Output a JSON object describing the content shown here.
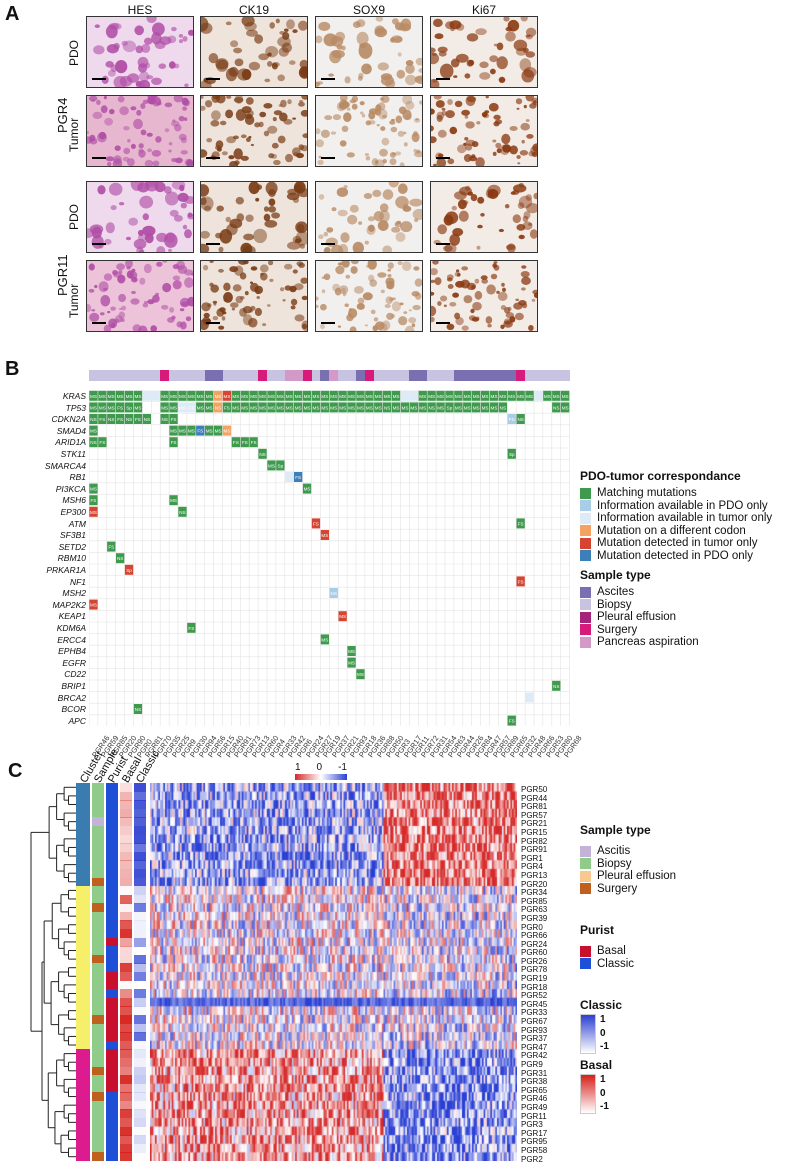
{
  "panels": {
    "a": "A",
    "b": "B",
    "c": "C"
  },
  "panel_a": {
    "columns": [
      "HES",
      "CK19",
      "SOX9",
      "Ki67"
    ],
    "groups": [
      {
        "name": "PGR4",
        "rows": [
          "PDO",
          "Tumor"
        ]
      },
      {
        "name": "PGR11",
        "rows": [
          "PDO",
          "Tumor"
        ]
      }
    ]
  },
  "panel_b": {
    "genes": [
      "KRAS",
      "TP53",
      "CDKN2A",
      "SMAD4",
      "ARID1A",
      "STK11",
      "SMARCA4",
      "RB1",
      "PI3KCA",
      "MSH6",
      "EP300",
      "ATM",
      "SF3B1",
      "SETD2",
      "RBM10",
      "PRKAR1A",
      "NF1",
      "MSH2",
      "MAP2K2",
      "KEAP1",
      "KDM6A",
      "ERCC4",
      "EPHB4",
      "EGFR",
      "CD22",
      "BRIP1",
      "BRCA2",
      "BCOR",
      "APC"
    ],
    "samples": [
      "PGR46",
      "PGR59",
      "PGR85",
      "PGR20",
      "PGR90",
      "PGR0",
      "PGR81",
      "PGR70",
      "PGR35",
      "PGR25",
      "PGR9",
      "PGR30",
      "PGR94",
      "PGR56",
      "PGR15",
      "PGR40",
      "PGR91",
      "PGR73",
      "PGR13",
      "PGR60",
      "PGR4",
      "PGR33",
      "PGR42",
      "PGR6",
      "PGR24",
      "PGR27",
      "PGR19",
      "PGR37",
      "PGR21",
      "PGR93",
      "PGR18",
      "PGR36",
      "PGR88",
      "PGR50",
      "PGR3",
      "PGR17",
      "PGR11",
      "PGR72",
      "PGR31",
      "PGR54",
      "PGR63",
      "PGR44",
      "PGR26",
      "PGR84",
      "PGR47",
      "PGR57",
      "PGR89",
      "PGR65",
      "PGR32",
      "PGR48",
      "PGR66",
      "PGR53",
      "PGR80",
      "PGR68"
    ],
    "legend_correspondence_title": "PDO-tumor correspondance",
    "legend_correspondence": [
      {
        "label": "Matching mutations",
        "color": "#3f9a4e"
      },
      {
        "label": "Information available in PDO only",
        "color": "#a9cde6"
      },
      {
        "label": "Information available in tumor only",
        "color": "#deebf7"
      },
      {
        "label": "Mutation on a different codon",
        "color": "#f4a261"
      },
      {
        "label": "Mutation detected in tumor only",
        "color": "#d64432"
      },
      {
        "label": "Mutation detected in PDO only",
        "color": "#3d7fb8"
      }
    ],
    "legend_sample_title": "Sample type",
    "legend_sample": [
      {
        "label": "Ascites",
        "color": "#7a6fb0"
      },
      {
        "label": "Biopsy",
        "color": "#c7c3e0"
      },
      {
        "label": "Pleural effusion",
        "color": "#a4247c"
      },
      {
        "label": "Surgery",
        "color": "#d81b7a"
      },
      {
        "label": "Pancreas aspiration",
        "color": "#d39ac8"
      }
    ]
  },
  "panel_c": {
    "annotation_labels": [
      "Cluster",
      "Sample",
      "Purist",
      "Basal",
      "Classic"
    ],
    "scale_labels": [
      "1",
      "0",
      "-1"
    ],
    "rows": [
      "PGR50",
      "PGR44",
      "PGR81",
      "PGR57",
      "PGR21",
      "PGR15",
      "PGR82",
      "PGR91",
      "PGR1",
      "PGR4",
      "PGR13",
      "PGR20",
      "PGR34",
      "PGR85",
      "PGR63",
      "PGR39",
      "PGR0",
      "PGR66",
      "PGR24",
      "PGR60",
      "PGR26",
      "PGR78",
      "PGR19",
      "PGR18",
      "PGR52",
      "PGR45",
      "PGR33",
      "PGR67",
      "PGR93",
      "PGR37",
      "PGR47",
      "PGR42",
      "PGR9",
      "PGR31",
      "PGR38",
      "PGR65",
      "PGR46",
      "PGR49",
      "PGR11",
      "PGR3",
      "PGR17",
      "PGR95",
      "PGR58",
      "PGR2"
    ],
    "legend_sample_title": "Sample type",
    "legend_sample": [
      {
        "label": "Ascitis",
        "color": "#c4b3d9"
      },
      {
        "label": "Biopsy",
        "color": "#8fcc8a"
      },
      {
        "label": "Pleural effusion",
        "color": "#f7c98f"
      },
      {
        "label": "Surgery",
        "color": "#c0601e"
      }
    ],
    "legend_purist_title": "Purist",
    "legend_purist": [
      {
        "label": "Basal",
        "color": "#c8102e"
      },
      {
        "label": "Classic",
        "color": "#1f4fd6"
      }
    ],
    "legend_classic_title": "Classic",
    "legend_classic_ticks": [
      "1",
      "0",
      "-1"
    ],
    "legend_basal_title": "Basal",
    "legend_basal_ticks": [
      "1",
      "0",
      "-1"
    ]
  }
}
